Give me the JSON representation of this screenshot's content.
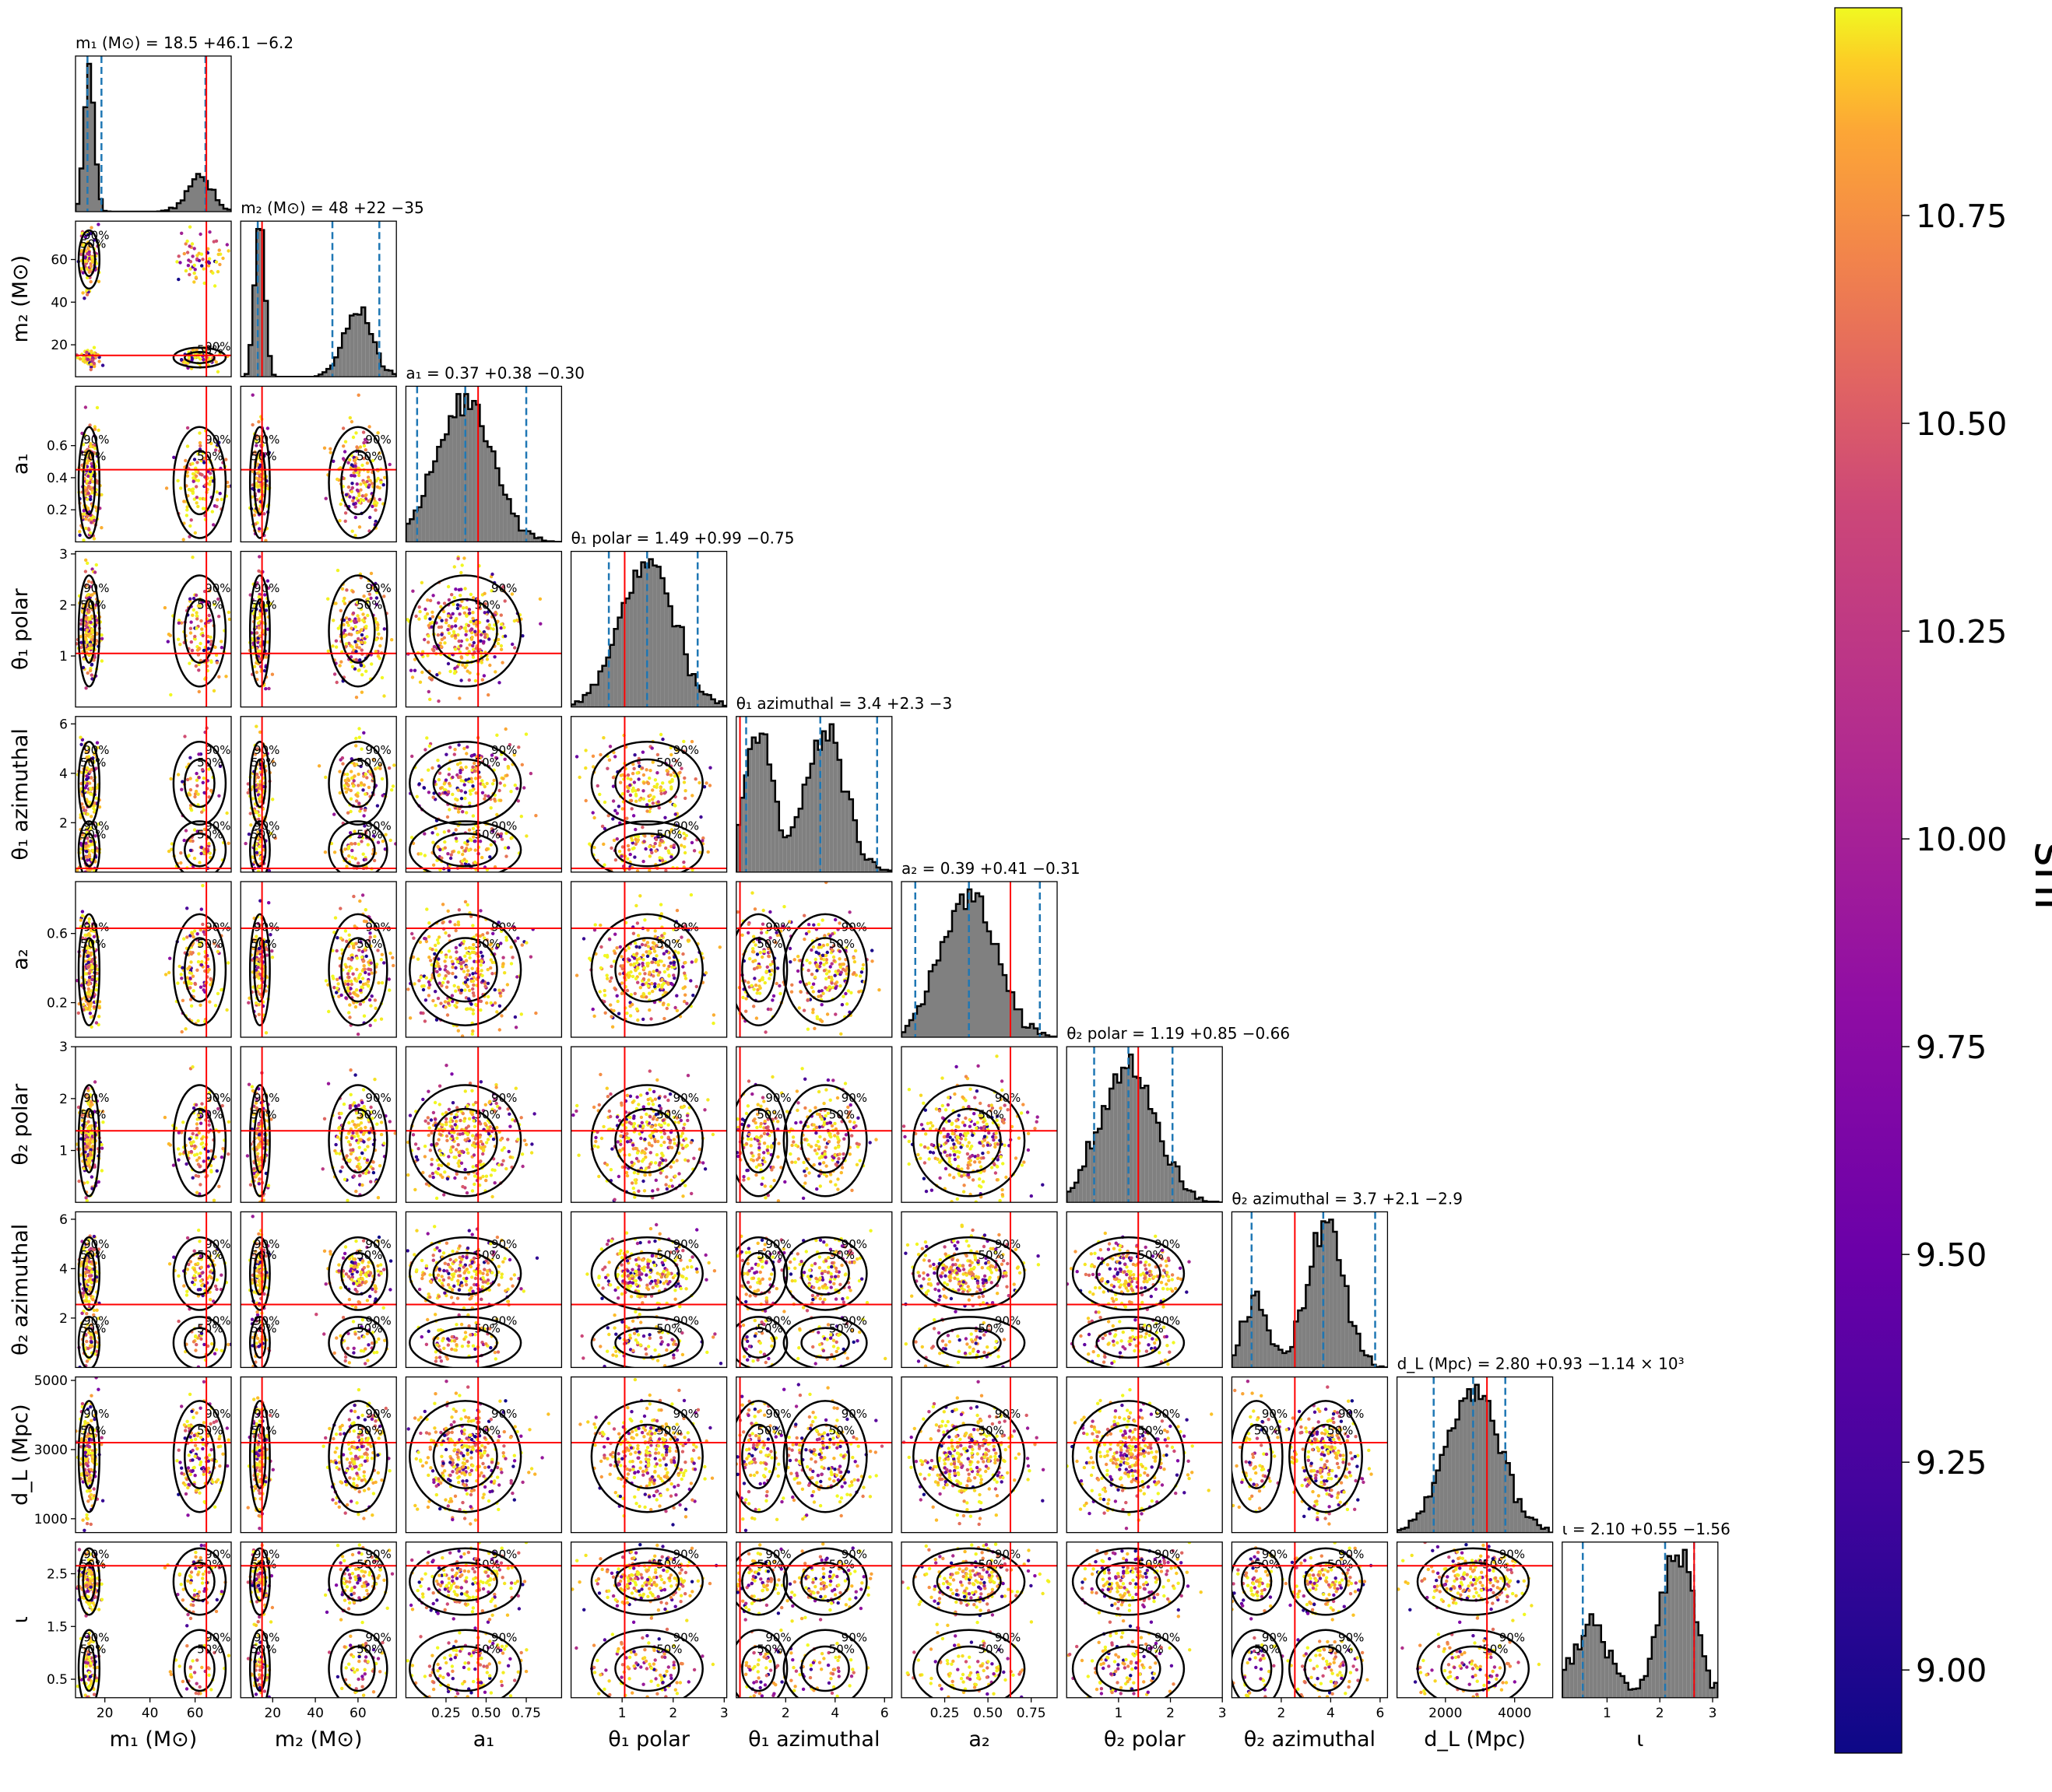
{
  "chart_data": {
    "type": "corner",
    "parameters": [
      {
        "key": "m1",
        "label": "m₁ (M⊙)",
        "title": "m₁ (M⊙) = 18.5 +46.1 −6.2",
        "median": 18.5,
        "err_plus": 46.1,
        "err_minus": 6.2,
        "injected": 65,
        "range": [
          7,
          76
        ],
        "ticks": [
          20,
          40,
          60
        ],
        "tick_labels": [
          "20",
          "40",
          "60"
        ]
      },
      {
        "key": "m2",
        "label": "m₂ (M⊙)",
        "title": "m₂ (M⊙) = 48 +22 −35",
        "median": 48,
        "err_plus": 22,
        "err_minus": 35,
        "injected": 15,
        "range": [
          5,
          78
        ],
        "ticks": [
          20,
          40,
          60
        ],
        "tick_labels": [
          "20",
          "40",
          "60"
        ]
      },
      {
        "key": "a1",
        "label": "a₁",
        "title": "a₁ = 0.37 +0.38 −0.30",
        "median": 0.37,
        "err_plus": 0.38,
        "err_minus": 0.3,
        "injected": 0.45,
        "range": [
          0.0,
          0.97
        ],
        "ticks": [
          0.2,
          0.4,
          0.6
        ],
        "tick_labels": [
          "0.2",
          "0.4",
          "0.6"
        ],
        "x_ticks": [
          0.25,
          0.5,
          0.75
        ],
        "x_tick_labels": [
          "0.25",
          "0.50",
          "0.75"
        ]
      },
      {
        "key": "theta1_polar",
        "label": "θ₁ polar",
        "title": "θ₁ polar = 1.49 +0.99 −0.75",
        "median": 1.49,
        "err_plus": 0.99,
        "err_minus": 0.75,
        "injected": 1.05,
        "range": [
          0,
          3.05
        ],
        "ticks": [
          1,
          2,
          3
        ],
        "tick_labels": [
          "1",
          "2",
          "3"
        ]
      },
      {
        "key": "theta1_azimuthal",
        "label": "θ₁ azimuthal",
        "title": "θ₁ azimuthal = 3.4 +2.3 −3",
        "median": 3.4,
        "err_plus": 2.3,
        "err_minus": 3.0,
        "injected": 0.15,
        "range": [
          0,
          6.3
        ],
        "ticks": [
          2,
          4,
          6
        ],
        "tick_labels": [
          "2",
          "4",
          "6"
        ]
      },
      {
        "key": "a2",
        "label": "a₂",
        "title": "a₂ = 0.39 +0.41 −0.31",
        "median": 0.39,
        "err_plus": 0.41,
        "err_minus": 0.31,
        "injected": 0.63,
        "range": [
          0.0,
          0.9
        ],
        "ticks": [
          0.2,
          0.6
        ],
        "tick_labels": [
          "0.2",
          "0.6"
        ],
        "x_ticks": [
          0.25,
          0.5,
          0.75
        ],
        "x_tick_labels": [
          "0.25",
          "0.50",
          "0.75"
        ]
      },
      {
        "key": "theta2_polar",
        "label": "θ₂ polar",
        "title": "θ₂ polar = 1.19 +0.85 −0.66",
        "median": 1.19,
        "err_plus": 0.85,
        "err_minus": 0.66,
        "injected": 1.38,
        "range": [
          0,
          3.0
        ],
        "ticks": [
          1,
          2,
          3
        ],
        "tick_labels": [
          "1",
          "2",
          "3"
        ]
      },
      {
        "key": "theta2_azimuthal",
        "label": "θ₂ azimuthal",
        "title": "θ₂ azimuthal = 3.7 +2.1 −2.9",
        "median": 3.7,
        "err_plus": 2.1,
        "err_minus": 2.9,
        "injected": 2.55,
        "range": [
          0,
          6.3
        ],
        "ticks": [
          2,
          4,
          6
        ],
        "tick_labels": [
          "2",
          "4",
          "6"
        ]
      },
      {
        "key": "dL",
        "label": "d_L (Mpc)",
        "title": "d_L (Mpc) = 2.80 +0.93 −1.14 × 10³",
        "median": 2800,
        "err_plus": 930,
        "err_minus": 1140,
        "injected": 3200,
        "range": [
          600,
          5100
        ],
        "ticks": [
          1000,
          3000,
          5000
        ],
        "tick_labels": [
          "1000",
          "3000",
          "5000"
        ],
        "x_ticks": [
          2000,
          4000
        ],
        "x_tick_labels": [
          "2000",
          "4000"
        ]
      },
      {
        "key": "iota",
        "label": "ι",
        "title": "ι = 2.10 +0.55 −1.56",
        "median": 2.1,
        "err_plus": 0.55,
        "err_minus": 1.56,
        "injected": 2.65,
        "range": [
          0.15,
          3.1
        ],
        "ticks": [
          0.5,
          1.5,
          2.5
        ],
        "tick_labels": [
          "0.5",
          "1.5",
          "2.5"
        ],
        "x_ticks": [
          1,
          2,
          3
        ],
        "x_tick_labels": [
          "1",
          "2",
          "3"
        ]
      }
    ],
    "contour_levels": [
      "50%",
      "90%"
    ],
    "colorbar": {
      "label": "snr",
      "range": [
        8.9,
        11.0
      ],
      "ticks": [
        9.0,
        9.25,
        9.5,
        9.75,
        10.0,
        10.25,
        10.5,
        10.75
      ],
      "tick_labels": [
        "9.00",
        "9.25",
        "9.50",
        "9.75",
        "10.00",
        "10.25",
        "10.50",
        "10.75"
      ],
      "colormap": "plasma"
    },
    "colors": {
      "histogram_fill": "#808080",
      "median_lines": "#1f77b4",
      "injection_lines": "#ff0000",
      "contours": "#000000"
    }
  }
}
